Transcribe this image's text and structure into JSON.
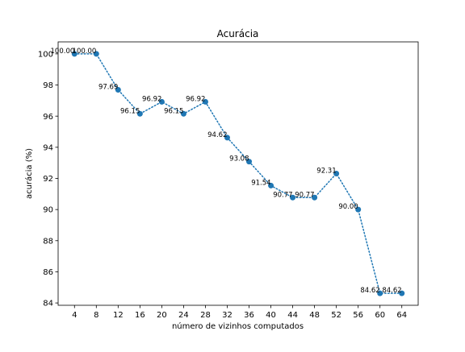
{
  "chart_data": {
    "type": "line",
    "title": "Acurácia",
    "xlabel": "número de vizinhos computados",
    "ylabel": "acurácia (%)",
    "x": [
      4,
      8,
      12,
      16,
      20,
      24,
      28,
      32,
      36,
      40,
      44,
      48,
      52,
      56,
      60,
      64
    ],
    "series": [
      {
        "values": [
          100.0,
          100.0,
          97.69,
          96.15,
          96.92,
          96.15,
          96.92,
          94.62,
          93.08,
          91.54,
          90.77,
          90.77,
          92.31,
          90.0,
          84.62,
          84.62
        ],
        "labels": [
          "100.00",
          "100.00",
          "97.69",
          "96.15",
          "96.92",
          "96.15",
          "96.92",
          "94.62",
          "93.08",
          "91.54",
          "90.77",
          "90.77",
          "92.31",
          "90.00",
          "84.62",
          "84.62"
        ],
        "color": "#1f77b4",
        "line_style": "dotted",
        "marker": "circle"
      }
    ],
    "xticks": [
      "4",
      "8",
      "12",
      "16",
      "20",
      "24",
      "28",
      "32",
      "36",
      "40",
      "44",
      "48",
      "52",
      "56",
      "60",
      "64"
    ],
    "yticks": [
      "84",
      "86",
      "88",
      "90",
      "92",
      "94",
      "96",
      "98",
      "100"
    ],
    "xlim": [
      1,
      67
    ],
    "ylim": [
      83.85,
      100.77
    ],
    "grid": false,
    "legend": false
  }
}
